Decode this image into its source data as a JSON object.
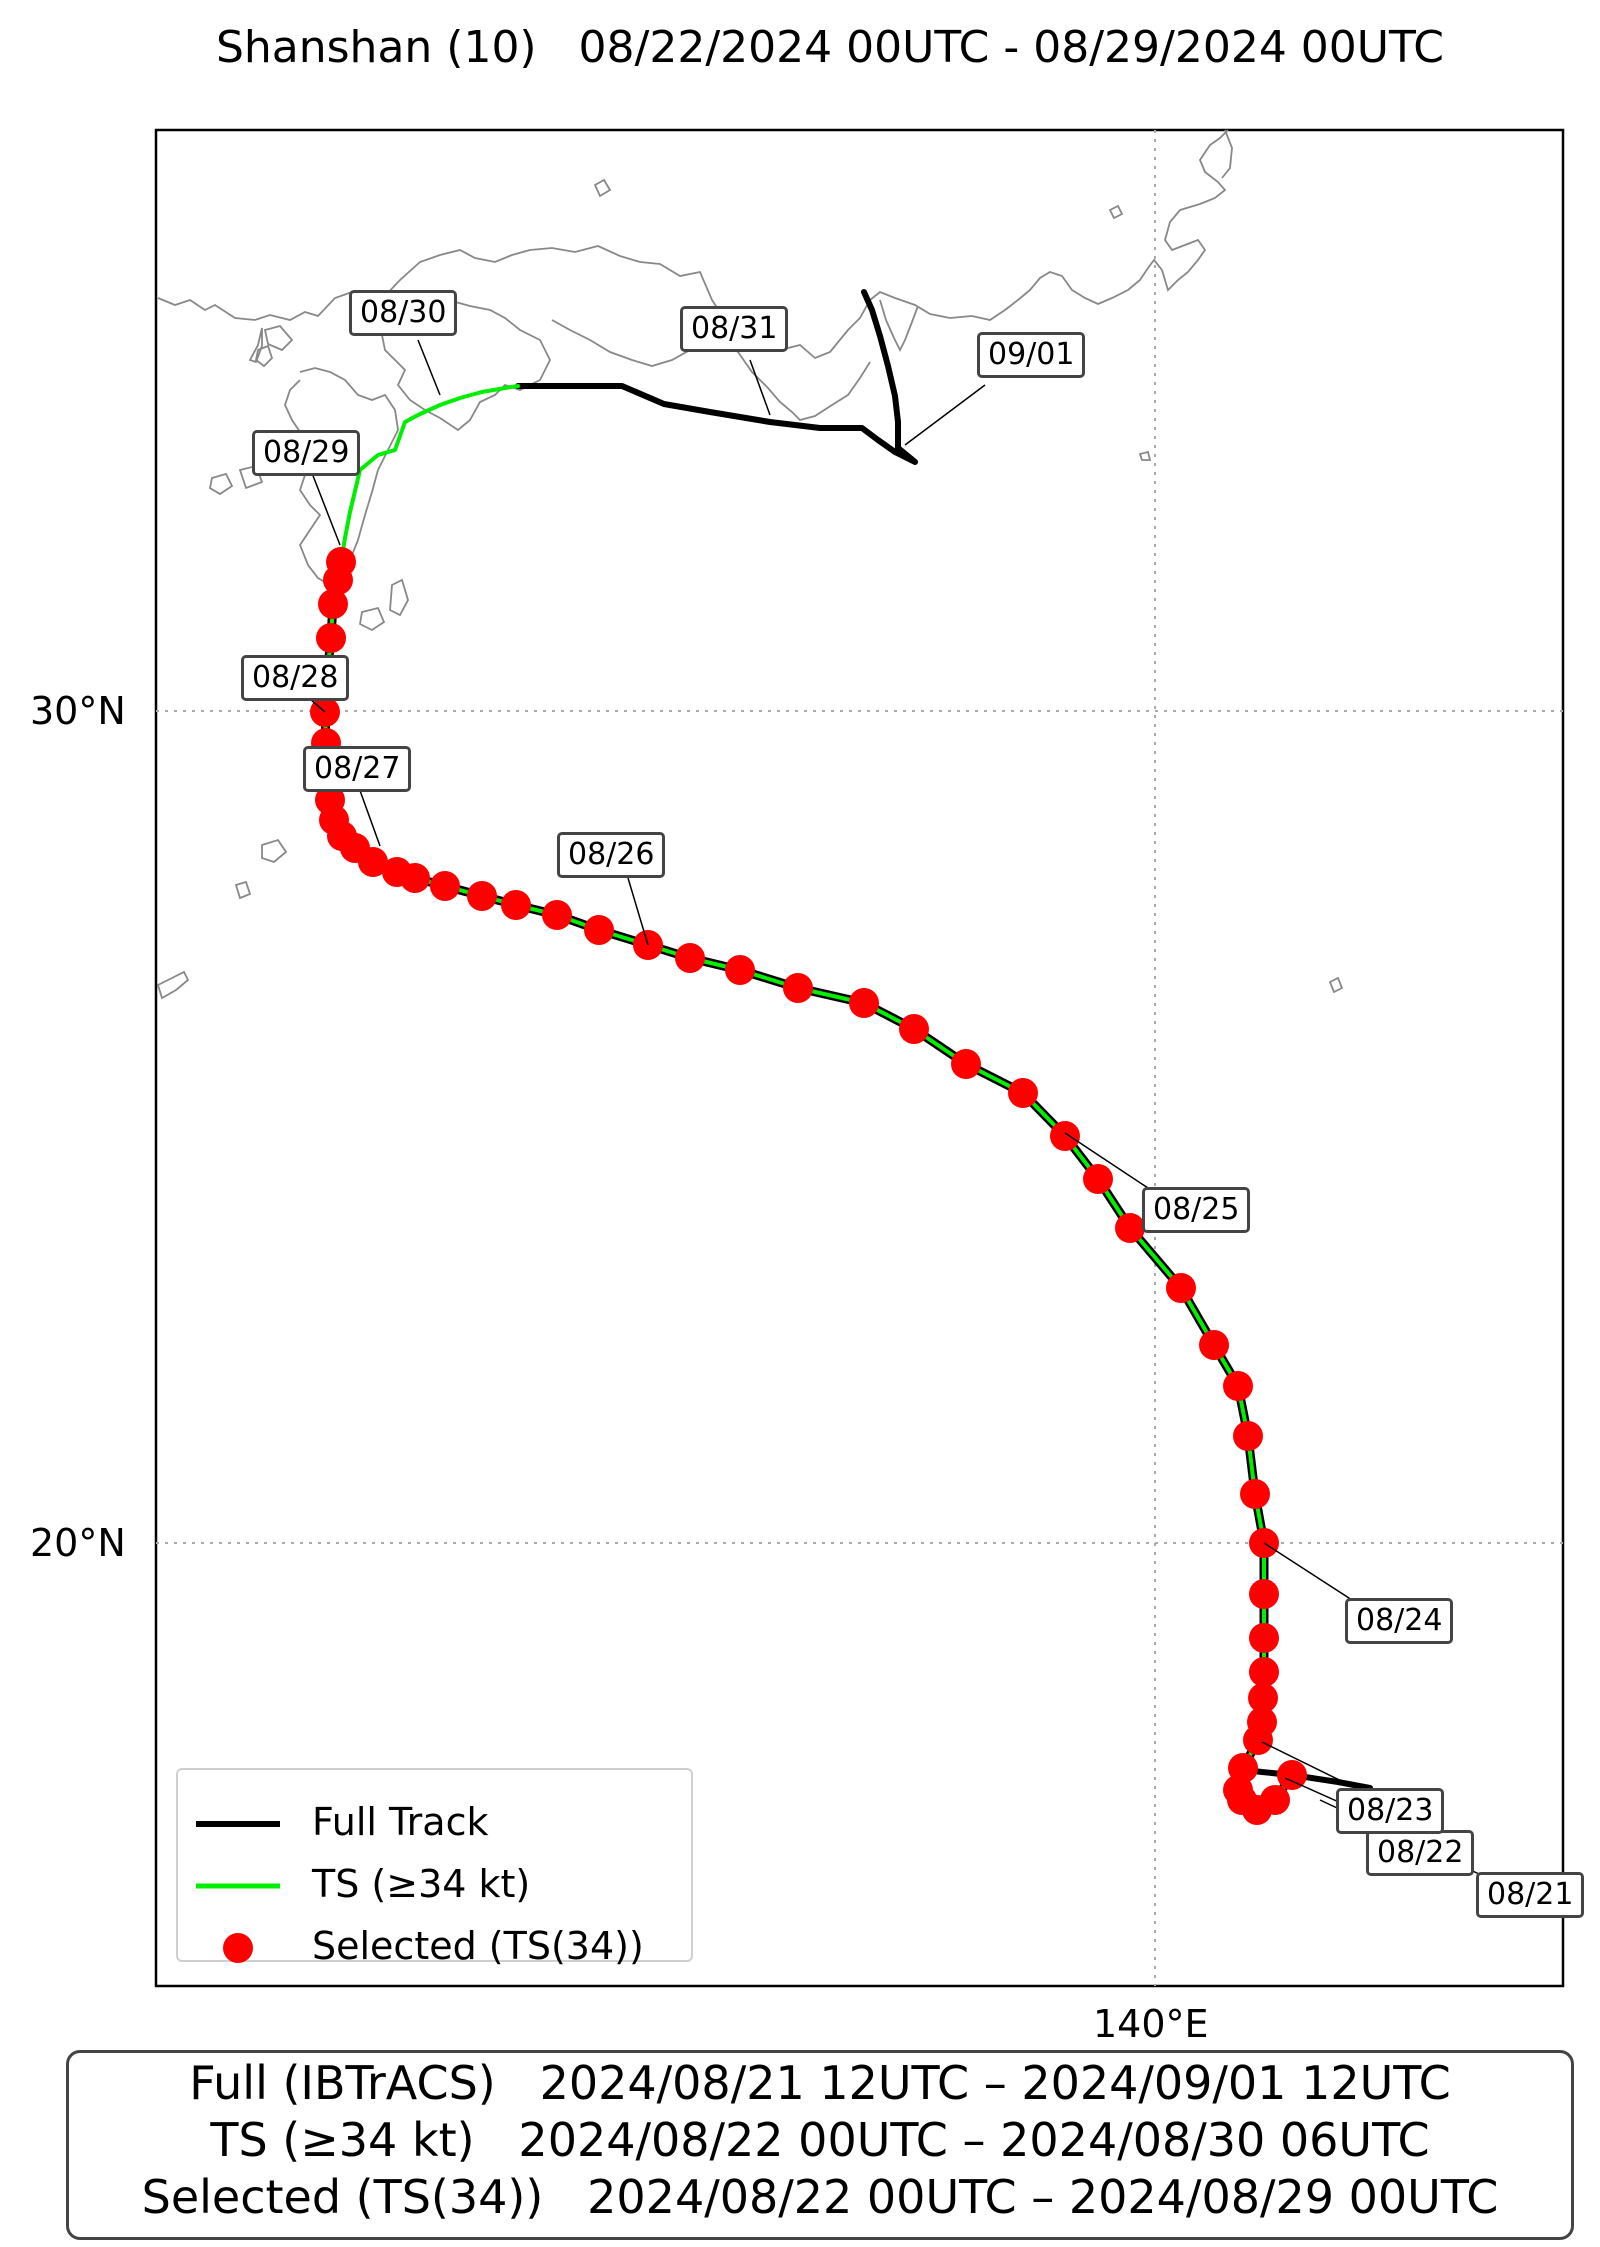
{
  "title": "Shanshan (10)   08/22/2024 00UTC - 08/29/2024 00UTC",
  "axes": {
    "lat_labels": [
      "30°N",
      "20°N"
    ],
    "lon_labels": [
      "140°E"
    ]
  },
  "legend": {
    "items": [
      {
        "label": "Full Track",
        "color": "#000000",
        "kind": "line"
      },
      {
        "label": "TS (≥34 kt)",
        "color": "#00ee00",
        "kind": "line"
      },
      {
        "label": "Selected (TS(34))",
        "color": "#ff0000",
        "kind": "dot"
      }
    ]
  },
  "date_labels": [
    "08/21",
    "08/22",
    "08/23",
    "08/24",
    "08/25",
    "08/26",
    "08/27",
    "08/28",
    "08/29",
    "08/30",
    "08/31",
    "09/01"
  ],
  "summary": {
    "full": "Full (IBTrACS)   2024/08/21 12UTC – 2024/09/01 12UTC",
    "ts": "TS (≥34 kt)   2024/08/22 00UTC – 2024/08/30 06UTC",
    "selected": "Selected (TS(34))   2024/08/22 00UTC – 2024/08/29 00UTC"
  },
  "colors": {
    "full_track": "#000000",
    "ts_track": "#00ee00",
    "selected": "#ff0000",
    "coast": "#888888",
    "grid": "#aaaaaa"
  }
}
